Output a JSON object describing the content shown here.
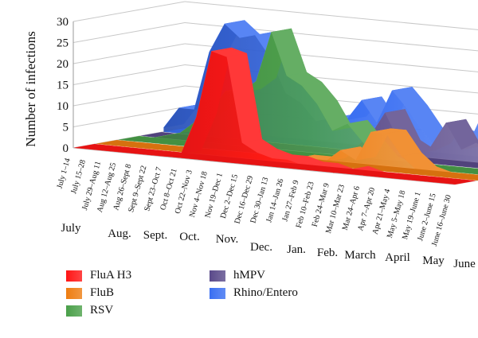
{
  "chart_data": {
    "type": "area",
    "projection": "3d-stacked-areas",
    "ylabel": "Number of infections",
    "ylim": [
      0,
      30
    ],
    "yticks": [
      0,
      5,
      10,
      15,
      20,
      25,
      30
    ],
    "grid": true,
    "legend_position": "bottom-left",
    "categories": [
      "July 1–14",
      "July 15–28",
      "July 29–Aug 11",
      "Aug 12–Aug 25",
      "Aug 26–Sept 8",
      "Sept 9–Sept 22",
      "Sept 23–Oct 7",
      "Oct 8–Oct 21",
      "Oct 22–Nov 3",
      "Nov 4–Nov 18",
      "Nov 19–Dec 1",
      "Dec 2–Dec 15",
      "Dec 16–Dec 29",
      "Dec 30–Jan 13",
      "Jan 14–Jan 26",
      "Jan 27–Feb 9",
      "Feb 10–Feb 23",
      "Feb 24–Mar 9",
      "Mar 10–Mar 23",
      "Mar 24–Apr 6",
      "Apr 7–Apr 20",
      "Apr 21–May 4",
      "May 5–May 18",
      "May 19–June 1",
      "June 2–June 15",
      "June 16–June 30"
    ],
    "months": [
      "July",
      "Aug.",
      "Sept.",
      "Oct.",
      "Nov.",
      "Dec.",
      "Jan.",
      "Feb.",
      "March",
      "April",
      "May",
      "June"
    ],
    "series": [
      {
        "name": "Rhino/Entero",
        "color": "#3a6ff2",
        "values": [
          1,
          6,
          6,
          20,
          27,
          24,
          25,
          20,
          12,
          10,
          6,
          7,
          7,
          12,
          7,
          15,
          11,
          6,
          2,
          6,
          4,
          12,
          14,
          18,
          10,
          4
        ]
      },
      {
        "name": "hMPV",
        "color": "#5a4a8a",
        "values": [
          0,
          0,
          0,
          0,
          0,
          0,
          0,
          0,
          0,
          0,
          0,
          0,
          0,
          1,
          2,
          5,
          11,
          4,
          2,
          4,
          10,
          4,
          6,
          3,
          1,
          0
        ]
      },
      {
        "name": "RSV",
        "color": "#4aa049",
        "values": [
          0,
          0,
          1,
          2,
          3,
          6,
          9,
          14,
          14,
          17,
          29,
          19,
          17,
          13,
          7,
          9,
          5,
          1,
          0,
          0,
          0,
          0,
          0,
          0,
          0,
          0
        ]
      },
      {
        "name": "FluB",
        "color": "#ee7d11",
        "values": [
          0,
          0,
          0,
          0,
          0,
          0,
          0,
          0,
          0,
          0,
          0,
          0,
          0,
          1,
          1,
          1,
          4,
          2,
          9,
          9,
          4,
          1,
          0,
          0,
          0,
          0
        ]
      },
      {
        "name": "FluA H3",
        "color": "#ff1515",
        "values": [
          0,
          0,
          0,
          0,
          0,
          0,
          0,
          1,
          10,
          26,
          25,
          5,
          3,
          2,
          2,
          1,
          1,
          0,
          1,
          0,
          0,
          0,
          0,
          0,
          0,
          0
        ]
      }
    ]
  },
  "legend": [
    {
      "label": "FluA H3",
      "color": "#ff1515"
    },
    {
      "label": "FluB",
      "color": "#ee7d11"
    },
    {
      "label": "RSV",
      "color": "#4aa049"
    },
    {
      "label": "hMPV",
      "color": "#5a4a8a"
    },
    {
      "label": "Rhino/Entero",
      "color": "#3a6ff2"
    }
  ]
}
